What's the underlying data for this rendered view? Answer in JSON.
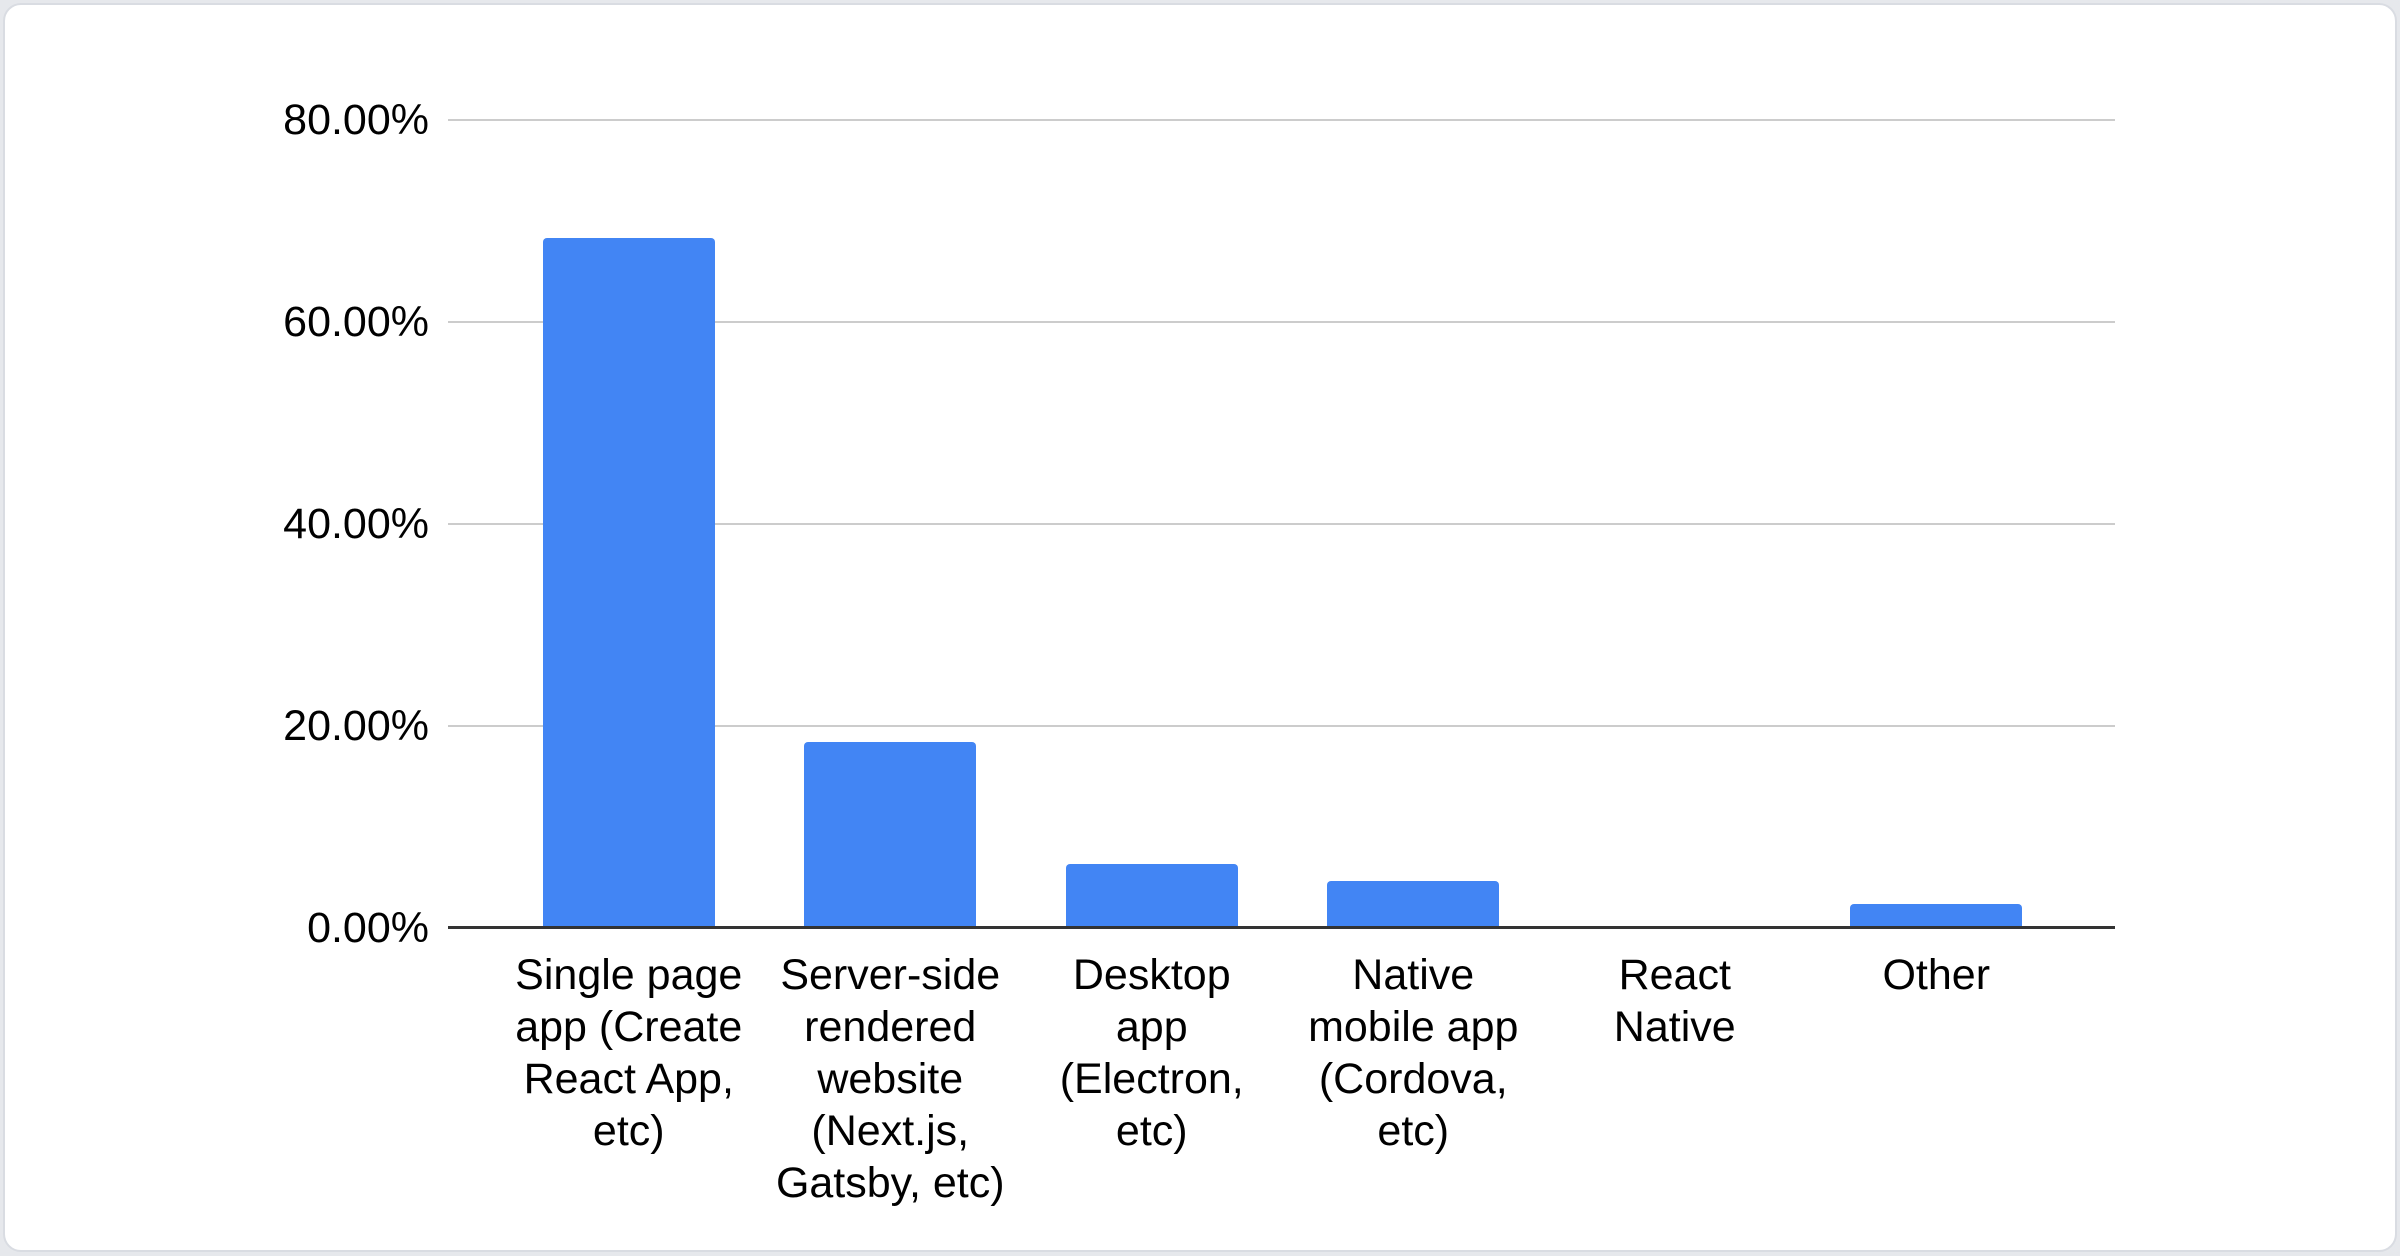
{
  "chart_data": {
    "type": "bar",
    "title": "",
    "legend_position": "none",
    "grid": true,
    "ylim": [
      0,
      80
    ],
    "yticks": [
      {
        "value": 0,
        "label": "0.00%"
      },
      {
        "value": 20,
        "label": "20.00%"
      },
      {
        "value": 40,
        "label": "40.00%"
      },
      {
        "value": 60,
        "label": "60.00%"
      },
      {
        "value": 80,
        "label": "80.00%"
      }
    ],
    "categories": [
      {
        "label": "Single page app (Create React App, etc)",
        "lines": [
          "Single page",
          "app (Create",
          "React App,",
          "etc)"
        ]
      },
      {
        "label": "Server-side rendered website (Next.js, Gatsby, etc)",
        "lines": [
          "Server-side",
          "rendered",
          "website",
          "(Next.js,",
          "Gatsby, etc)"
        ]
      },
      {
        "label": "Desktop app (Electron, etc)",
        "lines": [
          "Desktop",
          "app",
          "(Electron,",
          "etc)"
        ]
      },
      {
        "label": "Native mobile app (Cordova, etc)",
        "lines": [
          "Native",
          "mobile app",
          "(Cordova,",
          "etc)"
        ]
      },
      {
        "label": "React Native",
        "lines": [
          "React",
          "Native"
        ]
      },
      {
        "label": "Other",
        "lines": [
          "Other"
        ]
      }
    ],
    "values": [
      68.3,
      18.4,
      6.3,
      4.65,
      0,
      2.4
    ],
    "xlabel": "",
    "ylabel": "",
    "colors": {
      "bar": "#4285f4",
      "gridline": "#cccccc",
      "axis": "#333333",
      "text": "#000000",
      "card_background": "#ffffff",
      "card_border": "#d9dce2",
      "page_background": "#e6e8ec"
    }
  }
}
